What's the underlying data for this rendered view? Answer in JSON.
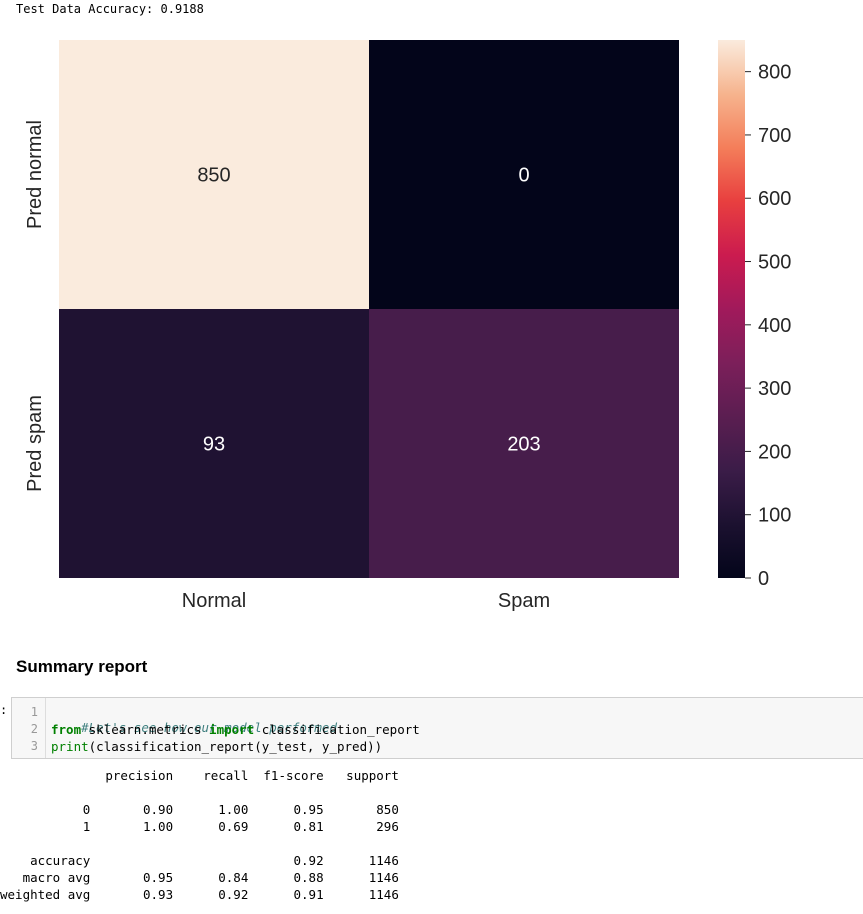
{
  "output": {
    "accuracy_text": "Test Data Accuracy: 0.9188"
  },
  "chart_data": {
    "type": "heatmap",
    "row_labels": [
      "Pred normal",
      "Pred spam"
    ],
    "col_labels": [
      "Normal",
      "Spam"
    ],
    "values": [
      [
        850,
        0
      ],
      [
        93,
        203
      ]
    ],
    "colorbar": {
      "min": 0,
      "max": 850,
      "ticks": [
        0,
        100,
        200,
        300,
        400,
        500,
        600,
        700,
        800
      ]
    },
    "colormap": "rocket",
    "title": "",
    "xlabel": "",
    "ylabel": "",
    "annot_colors": {
      "light": "#ffffff",
      "dark": "#262626"
    }
  },
  "section": {
    "heading": "Summary report"
  },
  "code_cell": {
    "prompt": ":",
    "lines": [
      {
        "num": "1",
        "comment": "#Let's see how our model performed"
      },
      {
        "num": "2",
        "kw1": "from",
        "mod": " sklearn.metrics ",
        "kw2": "import",
        "name": " classification_report"
      },
      {
        "num": "3",
        "builtin": "print",
        "rest": "(classification_report(y_test, y_pred))"
      }
    ]
  },
  "report": {
    "header": "              precision    recall  f1-score   support",
    "blank1": "",
    "row0": "           0       0.90      1.00      0.95       850",
    "row1": "           1       1.00      0.69      0.81       296",
    "blank2": "",
    "accuracy": "    accuracy                           0.92      1146",
    "macro": "   macro avg       0.95      0.84      0.88      1146",
    "weighted": "weighted avg       0.93      0.92      0.91      1146"
  }
}
